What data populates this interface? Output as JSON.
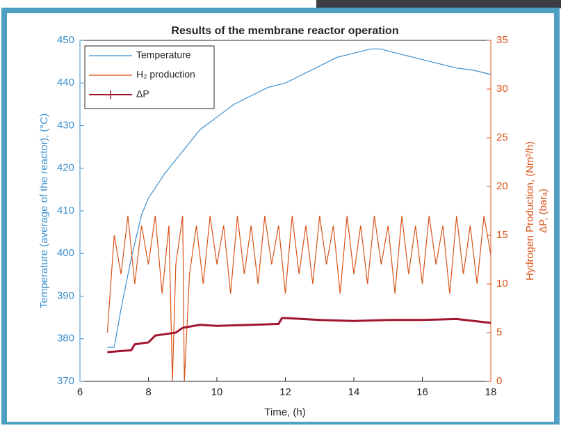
{
  "chart_data": {
    "type": "line",
    "title": "Results of the membrane reactor operation",
    "x_label": "Time, (h)",
    "y_label": "Temperature (average of the reactor), (°C)",
    "y2_label": [
      "Hydrogen Production, (Nm³/h)",
      "ΔP, (barₐ)"
    ],
    "xlim": [
      6,
      18
    ],
    "xticks": [
      6,
      8,
      10,
      12,
      14,
      16,
      18
    ],
    "ylim": [
      370,
      450
    ],
    "yticks": [
      370,
      380,
      390,
      400,
      410,
      420,
      430,
      440,
      450
    ],
    "y2lim": [
      0,
      35
    ],
    "y2ticks": [
      0,
      5,
      10,
      15,
      20,
      25,
      30,
      35
    ],
    "legend": "upper left",
    "series": [
      {
        "name": "Temperature",
        "color": "#3a8fcf",
        "x": [
          6.8,
          7.0,
          7.2,
          7.5,
          7.8,
          8.0,
          8.5,
          9.0,
          9.5,
          10.0,
          10.5,
          11.0,
          11.5,
          12.0,
          12.5,
          13.0,
          13.5,
          14.0,
          14.5,
          14.8,
          15.0,
          15.5,
          16.0,
          16.5,
          17.0,
          17.5,
          18.0
        ],
        "values": [
          378,
          378,
          387,
          399,
          409,
          413,
          419,
          424,
          429,
          432,
          435,
          437,
          439,
          440,
          442,
          444,
          446,
          447,
          448,
          448,
          447.5,
          446.5,
          445.5,
          444.5,
          443.5,
          443,
          442
        ]
      },
      {
        "name": "H₂ production",
        "color": "#d95319",
        "axis": "y2",
        "x": [
          6.8,
          7.0,
          7.2,
          7.4,
          7.6,
          7.8,
          8.0,
          8.2,
          8.4,
          8.6,
          8.7,
          8.8,
          9.0,
          9.05,
          9.2,
          9.4,
          9.6,
          9.8,
          10.0,
          10.2,
          10.4,
          10.6,
          10.8,
          11.0,
          11.2,
          11.4,
          11.6,
          11.8,
          12.0,
          12.2,
          12.4,
          12.6,
          12.8,
          13.0,
          13.2,
          13.4,
          13.6,
          13.8,
          14.0,
          14.2,
          14.4,
          14.6,
          14.8,
          15.0,
          15.2,
          15.4,
          15.6,
          15.8,
          16.0,
          16.2,
          16.4,
          16.6,
          16.8,
          17.0,
          17.2,
          17.4,
          17.6,
          17.8,
          18.0
        ],
        "values": [
          5,
          15,
          11,
          17,
          10,
          16,
          12,
          17,
          9,
          16,
          0,
          12,
          17,
          0,
          11,
          16,
          10,
          17,
          12,
          16,
          9,
          17,
          11,
          16,
          10,
          17,
          12,
          16,
          9,
          17,
          11,
          16,
          10,
          17,
          12,
          16,
          9,
          17,
          11,
          16,
          10,
          17,
          12,
          16,
          9,
          17,
          11,
          16,
          10,
          17,
          12,
          16,
          9,
          17,
          11,
          16,
          10,
          17,
          13
        ]
      },
      {
        "name": "ΔP",
        "color": "#a2142f",
        "axis": "y2",
        "x": [
          6.8,
          7.5,
          7.6,
          8.0,
          8.2,
          8.8,
          9.0,
          9.5,
          10.0,
          11.0,
          11.8,
          11.9,
          12.0,
          13.0,
          14.0,
          15.0,
          16.0,
          17.0,
          18.0
        ],
        "values": [
          3,
          3.2,
          3.8,
          4,
          4.7,
          5,
          5.5,
          5.8,
          5.7,
          5.8,
          5.9,
          6.5,
          6.5,
          6.3,
          6.2,
          6.3,
          6.3,
          6.4,
          6
        ]
      }
    ]
  }
}
